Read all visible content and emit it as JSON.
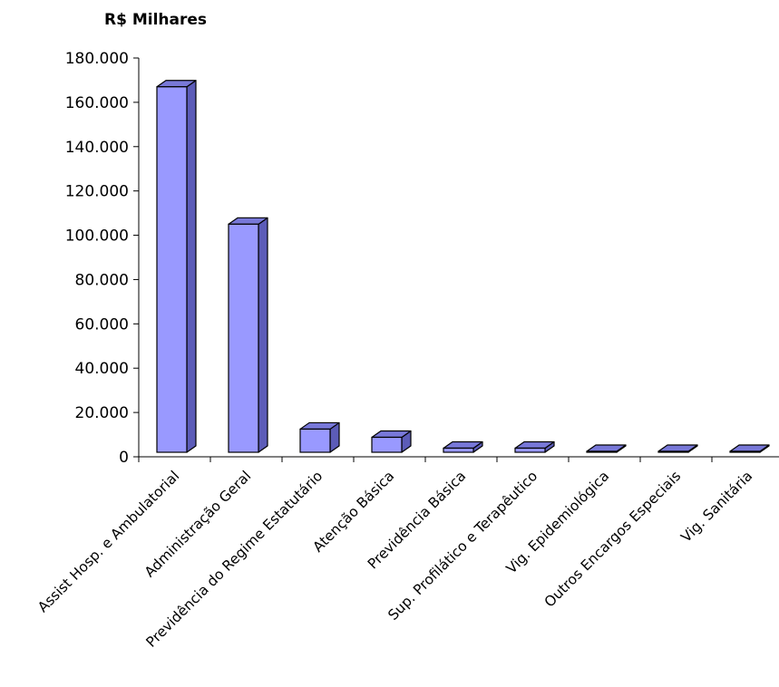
{
  "chart_data": {
    "type": "bar",
    "style": "3d-column",
    "ylabel": "R$ Milhares",
    "categories": [
      "Assist Hosp. e Ambulatorial",
      "Administração Geral",
      "Previdência do Regime Estatutário",
      "Atenção Básica",
      "Previdência Básica",
      "Sup. Profilático e Terapêutico",
      "Vig. Epidemiológica",
      "Outros Encargos Especiais",
      "Vig. Sanitária"
    ],
    "values": [
      167000,
      105000,
      12500,
      8800,
      3900,
      3900,
      1000,
      1000,
      200
    ],
    "ylim": [
      0,
      180000
    ],
    "yticks": [
      0,
      20000,
      40000,
      60000,
      80000,
      100000,
      120000,
      140000,
      160000,
      180000
    ],
    "ytick_labels": [
      "0",
      "20.000",
      "40.000",
      "60.000",
      "80.000",
      "100.000",
      "120.000",
      "140.000",
      "160.000",
      "180.000"
    ],
    "grid": false,
    "legend": "none",
    "colors": {
      "front": "#9999ff",
      "side": "#5c5cb8",
      "top": "#7878d8",
      "edge": "#000000"
    }
  }
}
